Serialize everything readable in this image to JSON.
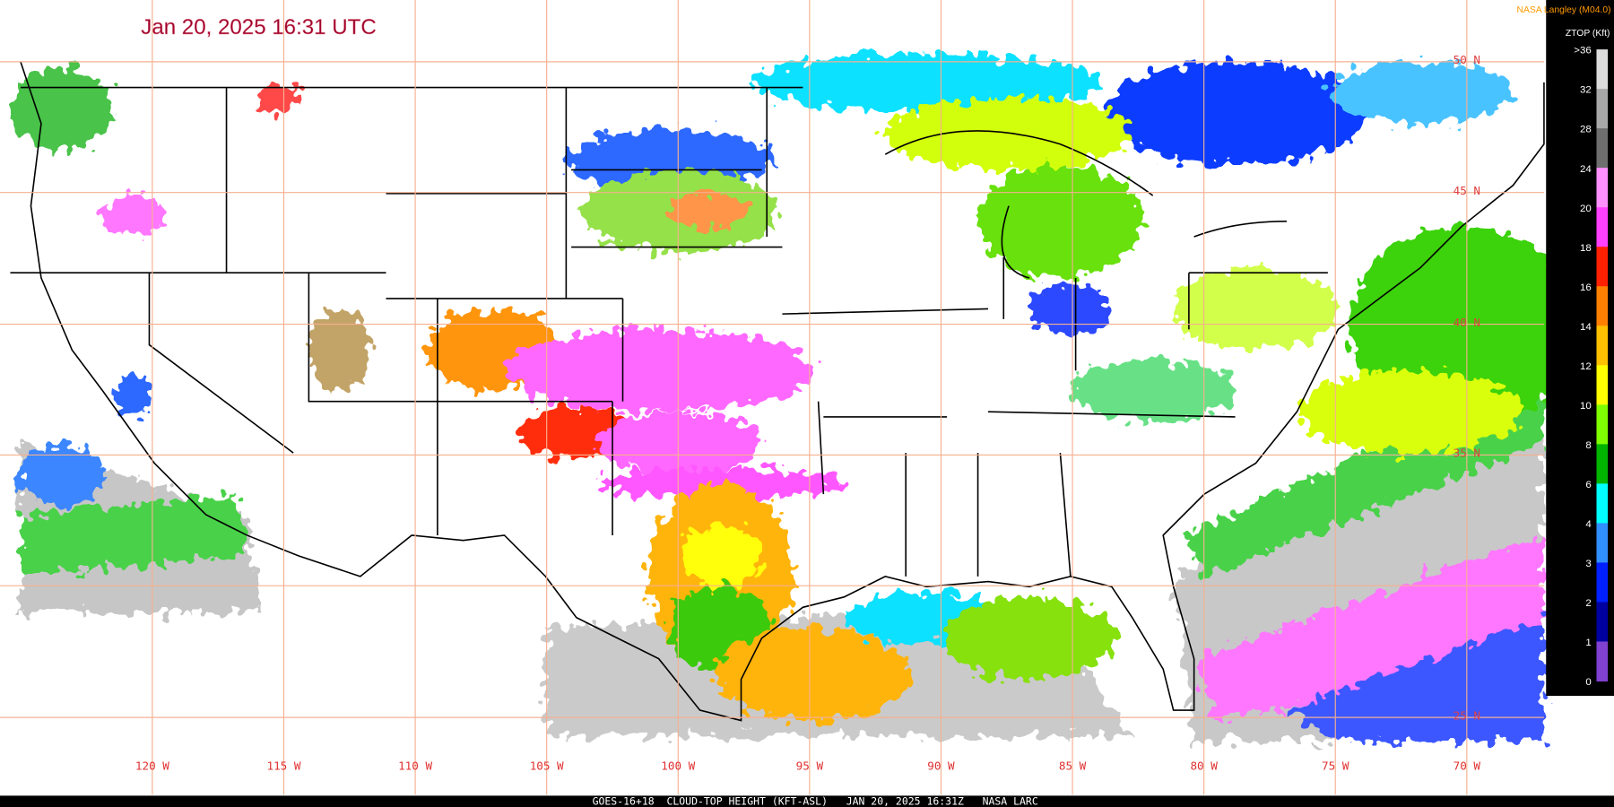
{
  "header": {
    "title": "Jan 20, 2025 16:31 UTC",
    "credit": "NASA Langley (M04.0)"
  },
  "legend": {
    "title": "ZTOP (Kft)",
    "labels": [
      ">36",
      "32",
      "28",
      "24",
      "20",
      "18",
      "16",
      "14",
      "12",
      "10",
      "8",
      "6",
      "4",
      "3",
      "2",
      "1",
      "0"
    ],
    "colors": [
      "#dcdcdc",
      "#a8a8a8",
      "#6e6e6e",
      "#ff90ff",
      "#ff40ff",
      "#ff2000",
      "#ff8000",
      "#ffc000",
      "#ffff00",
      "#80ff00",
      "#00b400",
      "#00ffff",
      "#3090ff",
      "#0020ff",
      "#0000a0",
      "#8040d0"
    ]
  },
  "map": {
    "latitude_labels": [
      "50 N",
      "45 N",
      "40 N",
      "35 N",
      "25 N"
    ],
    "longitude_labels": [
      "120 W",
      "115 W",
      "110 W",
      "105 W",
      "100 W",
      "95 W",
      "90 W",
      "85 W",
      "80 W",
      "75 W",
      "70 W"
    ]
  },
  "footer": "GOES-16+18  CLOUD-TOP HEIGHT (KFT-ASL)   JAN 20, 2025 16:31Z   NASA LARC"
}
